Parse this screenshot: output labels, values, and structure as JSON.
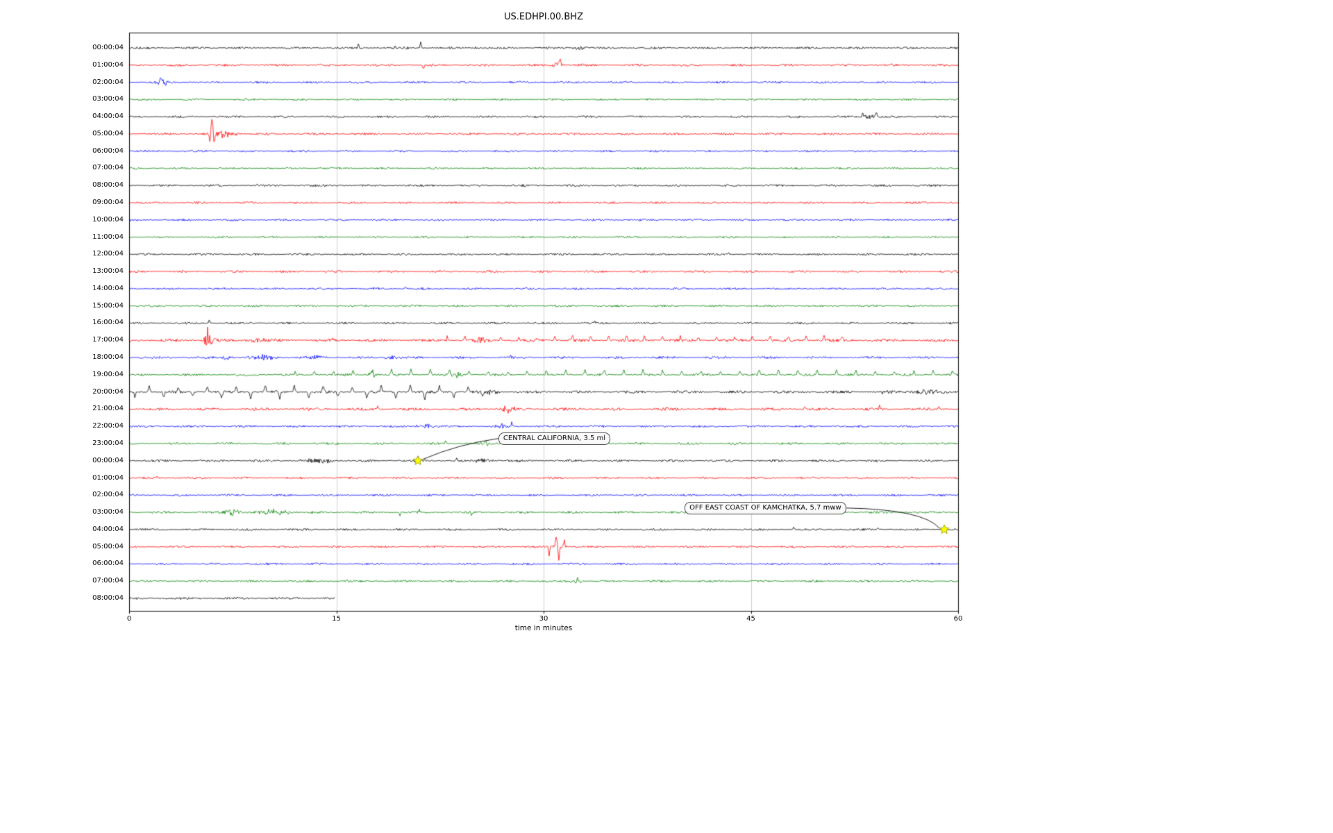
{
  "title": "US.EDHPI.00.BHZ",
  "chart_data": {
    "type": "line",
    "subtype": "seismogram-dayplot",
    "xlabel": "time in minutes",
    "xlim": [
      0,
      60
    ],
    "x_ticks": [
      0,
      15,
      30,
      45,
      60
    ],
    "x_tick_labels": [
      "0",
      "15",
      "30",
      "45",
      "60"
    ],
    "grid": "vertical",
    "trace_color_cycle": [
      "#000000",
      "#ff0000",
      "#0000ff",
      "#008000"
    ],
    "rows": [
      {
        "label": "00:00:04",
        "color": "#000000",
        "noise": 1.3,
        "events": [
          {
            "type": "spike",
            "t": 16.6,
            "a": 6
          },
          {
            "type": "burst",
            "t": 19.3,
            "a": 2.2,
            "w": 0.25
          },
          {
            "type": "burst",
            "t": 20.1,
            "a": 2.2,
            "w": 0.3
          },
          {
            "type": "spike",
            "t": 21.1,
            "a": 9
          },
          {
            "type": "burst",
            "t": 25.2,
            "a": 2,
            "w": 0.2
          },
          {
            "type": "burst",
            "t": 32.6,
            "a": 2.6,
            "w": 0.8
          }
        ]
      },
      {
        "label": "01:00:04",
        "color": "#ff0000",
        "noise": 1.5,
        "events": [
          {
            "type": "spike",
            "t": 21.3,
            "a": -6
          },
          {
            "type": "burst",
            "t": 31.0,
            "a": 4.5,
            "w": 0.45
          },
          {
            "type": "spike",
            "t": 31.2,
            "a": 6
          }
        ]
      },
      {
        "label": "02:00:04",
        "color": "#0000ff",
        "noise": 1.3,
        "events": [
          {
            "type": "burst",
            "t": 2.4,
            "a": 5,
            "w": 0.4
          },
          {
            "type": "spike",
            "t": 2.3,
            "a": 6
          },
          {
            "type": "spike",
            "t": 2.6,
            "a": -5
          }
        ]
      },
      {
        "label": "03:00:04",
        "color": "#008000",
        "noise": 1.2,
        "events": []
      },
      {
        "label": "04:00:04",
        "color": "#000000",
        "noise": 1.3,
        "events": [
          {
            "type": "spike",
            "t": 53.1,
            "a": 7
          },
          {
            "type": "burst",
            "t": 53.7,
            "a": 4,
            "w": 0.6
          },
          {
            "type": "spike",
            "t": 54.1,
            "a": 5
          }
        ]
      },
      {
        "label": "05:00:04",
        "color": "#ff0000",
        "noise": 1.4,
        "events": [
          {
            "type": "spike",
            "t": 5.85,
            "a": -14
          },
          {
            "type": "spike",
            "t": 6.0,
            "a": 22,
            "w": 0.09
          },
          {
            "type": "spike",
            "t": 6.15,
            "a": -18
          },
          {
            "type": "burst",
            "t": 6.6,
            "a": 6,
            "w": 0.5
          },
          {
            "type": "burst",
            "t": 7.4,
            "a": 4,
            "w": 0.5
          },
          {
            "type": "spike",
            "t": 7.3,
            "a": 5
          }
        ]
      },
      {
        "label": "06:00:04",
        "color": "#0000ff",
        "noise": 1.2,
        "events": []
      },
      {
        "label": "07:00:04",
        "color": "#008000",
        "noise": 1.2,
        "events": []
      },
      {
        "label": "08:00:04",
        "color": "#000000",
        "noise": 1.4,
        "events": [
          {
            "type": "spike",
            "t": 9.3,
            "a": 2.5
          }
        ]
      },
      {
        "label": "09:00:04",
        "color": "#ff0000",
        "noise": 1.3,
        "events": []
      },
      {
        "label": "10:00:04",
        "color": "#0000ff",
        "noise": 1.3,
        "events": []
      },
      {
        "label": "11:00:04",
        "color": "#008000",
        "noise": 1.2,
        "events": []
      },
      {
        "label": "12:00:04",
        "color": "#000000",
        "noise": 1.3,
        "events": [
          {
            "type": "spike",
            "t": 43.4,
            "a": 3
          }
        ]
      },
      {
        "label": "13:00:04",
        "color": "#ff0000",
        "noise": 1.4,
        "events": []
      },
      {
        "label": "14:00:04",
        "color": "#0000ff",
        "noise": 1.3,
        "events": [
          {
            "type": "spike",
            "t": 20,
            "a": 2.5
          }
        ]
      },
      {
        "label": "15:00:04",
        "color": "#008000",
        "noise": 1.3,
        "events": []
      },
      {
        "label": "16:00:04",
        "color": "#000000",
        "noise": 1.3,
        "events": [
          {
            "type": "spike",
            "t": 5.8,
            "a": 5
          },
          {
            "type": "spike",
            "t": 33.7,
            "a": 3.5
          }
        ]
      },
      {
        "label": "17:00:04",
        "color": "#ff0000",
        "noise": 1.9,
        "events": [
          {
            "type": "burst",
            "t": 5.75,
            "a": 10,
            "w": 0.35
          },
          {
            "type": "spike",
            "t": 5.7,
            "a": 12
          },
          {
            "type": "spike",
            "t": 5.9,
            "a": -11
          },
          {
            "type": "burst",
            "t": 9.3,
            "a": 3,
            "w": 0.8
          },
          {
            "type": "spike",
            "t": 14.7,
            "a": 4
          },
          {
            "type": "burst",
            "t": 25.4,
            "a": 3.5,
            "w": 0.6
          },
          {
            "type": "periodic",
            "start": 23,
            "end": 52.5,
            "period": 1.3,
            "a": 6,
            "w": 0.07,
            "dir": 1
          }
        ]
      },
      {
        "label": "18:00:04",
        "color": "#0000ff",
        "noise": 1.5,
        "events": [
          {
            "type": "burst",
            "t": 7.1,
            "a": 4,
            "w": 0.35
          },
          {
            "type": "burst",
            "t": 9.8,
            "a": 3.5,
            "w": 0.9
          },
          {
            "type": "burst",
            "t": 13.6,
            "a": 3,
            "w": 0.7
          },
          {
            "type": "burst",
            "t": 19,
            "a": 3.5,
            "w": 0.5
          },
          {
            "type": "spike",
            "t": 27.6,
            "a": 4
          }
        ]
      },
      {
        "label": "19:00:04",
        "color": "#008000",
        "noise": 1.5,
        "events": [
          {
            "type": "periodic",
            "start": 12,
            "end": 60,
            "period": 1.4,
            "a": 7,
            "w": 0.07,
            "dir": 1
          },
          {
            "type": "burst",
            "t": 17.6,
            "a": 4,
            "w": 0.4
          },
          {
            "type": "burst",
            "t": 23.8,
            "a": 5,
            "w": 0.4
          }
        ]
      },
      {
        "label": "20:00:04",
        "color": "#000000",
        "noise": 1.7,
        "events": [
          {
            "type": "periodic",
            "start": 0.4,
            "end": 26,
            "period": 1.05,
            "a": 9,
            "w": 0.08,
            "alt": true
          },
          {
            "type": "burst",
            "t": 26.3,
            "a": 4,
            "w": 0.4
          },
          {
            "type": "burst",
            "t": 54.6,
            "a": 2.5,
            "w": 0.5
          },
          {
            "type": "burst",
            "t": 57.8,
            "a": 4,
            "w": 1.2
          }
        ]
      },
      {
        "label": "21:00:04",
        "color": "#ff0000",
        "noise": 1.8,
        "events": [
          {
            "type": "spike",
            "t": 18,
            "a": 4
          },
          {
            "type": "burst",
            "t": 27.4,
            "a": 5,
            "w": 0.6
          },
          {
            "type": "spike",
            "t": 39,
            "a": 4
          },
          {
            "type": "spike",
            "t": 48.9,
            "a": 4
          },
          {
            "type": "spike",
            "t": 54.3,
            "a": 5
          },
          {
            "type": "spike",
            "t": 58.6,
            "a": 4
          }
        ]
      },
      {
        "label": "22:00:04",
        "color": "#0000ff",
        "noise": 1.4,
        "events": [
          {
            "type": "burst",
            "t": 21.4,
            "a": 3.5,
            "w": 0.7
          },
          {
            "type": "burst",
            "t": 26.9,
            "a": 3,
            "w": 0.4
          },
          {
            "type": "spike",
            "t": 27.7,
            "a": 6
          }
        ]
      },
      {
        "label": "23:00:04",
        "color": "#008000",
        "noise": 1.4,
        "events": [
          {
            "type": "spike",
            "t": 22.9,
            "a": 4
          },
          {
            "type": "spike",
            "t": 25.8,
            "a": 4
          },
          {
            "type": "spike",
            "t": 25.95,
            "a": -4
          }
        ]
      },
      {
        "label": "00:00:04",
        "color": "#000000",
        "noise": 1.5,
        "events": [
          {
            "type": "burst",
            "t": 13.7,
            "a": 3.5,
            "w": 1.3
          },
          {
            "type": "spike",
            "t": 20.9,
            "a": 5
          },
          {
            "type": "spike",
            "t": 23.7,
            "a": 4
          },
          {
            "type": "burst",
            "t": 25.6,
            "a": 3.5,
            "w": 0.7
          }
        ]
      },
      {
        "label": "01:00:04",
        "color": "#ff0000",
        "noise": 1.3,
        "events": [
          {
            "type": "spike",
            "t": 2.0,
            "a": 3
          }
        ]
      },
      {
        "label": "02:00:04",
        "color": "#0000ff",
        "noise": 1.3,
        "events": []
      },
      {
        "label": "03:00:04",
        "color": "#008000",
        "noise": 1.4,
        "events": [
          {
            "type": "burst",
            "t": 7.4,
            "a": 5,
            "w": 0.7
          },
          {
            "type": "burst",
            "t": 10.6,
            "a": 4.5,
            "w": 1.1
          },
          {
            "type": "spike",
            "t": 19.6,
            "a": -5
          },
          {
            "type": "spike",
            "t": 21,
            "a": 4
          },
          {
            "type": "spike",
            "t": 24.8,
            "a": -4
          }
        ]
      },
      {
        "label": "04:00:04",
        "color": "#000000",
        "noise": 1.3,
        "events": [
          {
            "type": "spike",
            "t": 48.1,
            "a": 4
          },
          {
            "type": "spike",
            "t": 54.2,
            "a": 3
          }
        ]
      },
      {
        "label": "05:00:04",
        "color": "#ff0000",
        "noise": 1.3,
        "events": [
          {
            "type": "spike",
            "t": 30.4,
            "a": -12
          },
          {
            "type": "spike",
            "t": 30.9,
            "a": 18
          },
          {
            "type": "spike",
            "t": 31.1,
            "a": -16
          },
          {
            "type": "spike",
            "t": 31.5,
            "a": 8
          },
          {
            "type": "burst",
            "t": 31,
            "a": 5,
            "w": 0.6
          }
        ]
      },
      {
        "label": "06:00:04",
        "color": "#0000ff",
        "noise": 1.3,
        "events": []
      },
      {
        "label": "07:00:04",
        "color": "#008000",
        "noise": 1.3,
        "events": [
          {
            "type": "burst",
            "t": 32.4,
            "a": 6,
            "w": 0.35
          }
        ]
      },
      {
        "label": "08:00:04",
        "color": "#000000",
        "noise": 1.5,
        "end": 14.9,
        "events": []
      }
    ],
    "annotations": [
      {
        "label": "CENTRAL CALIFORNIA, 3.5 ml",
        "row_index": 24,
        "x_min": 20.9,
        "offset": [
          116,
          -41
        ],
        "marker": "star",
        "marker_color": "#ffff00"
      },
      {
        "label": "OFF EAST COAST OF KAMCHATKA, 5.7 mww",
        "row_index": 28,
        "x_min": 59.0,
        "offset": [
          -374,
          -40
        ],
        "marker": "star",
        "marker_color": "#ffff00"
      }
    ]
  }
}
